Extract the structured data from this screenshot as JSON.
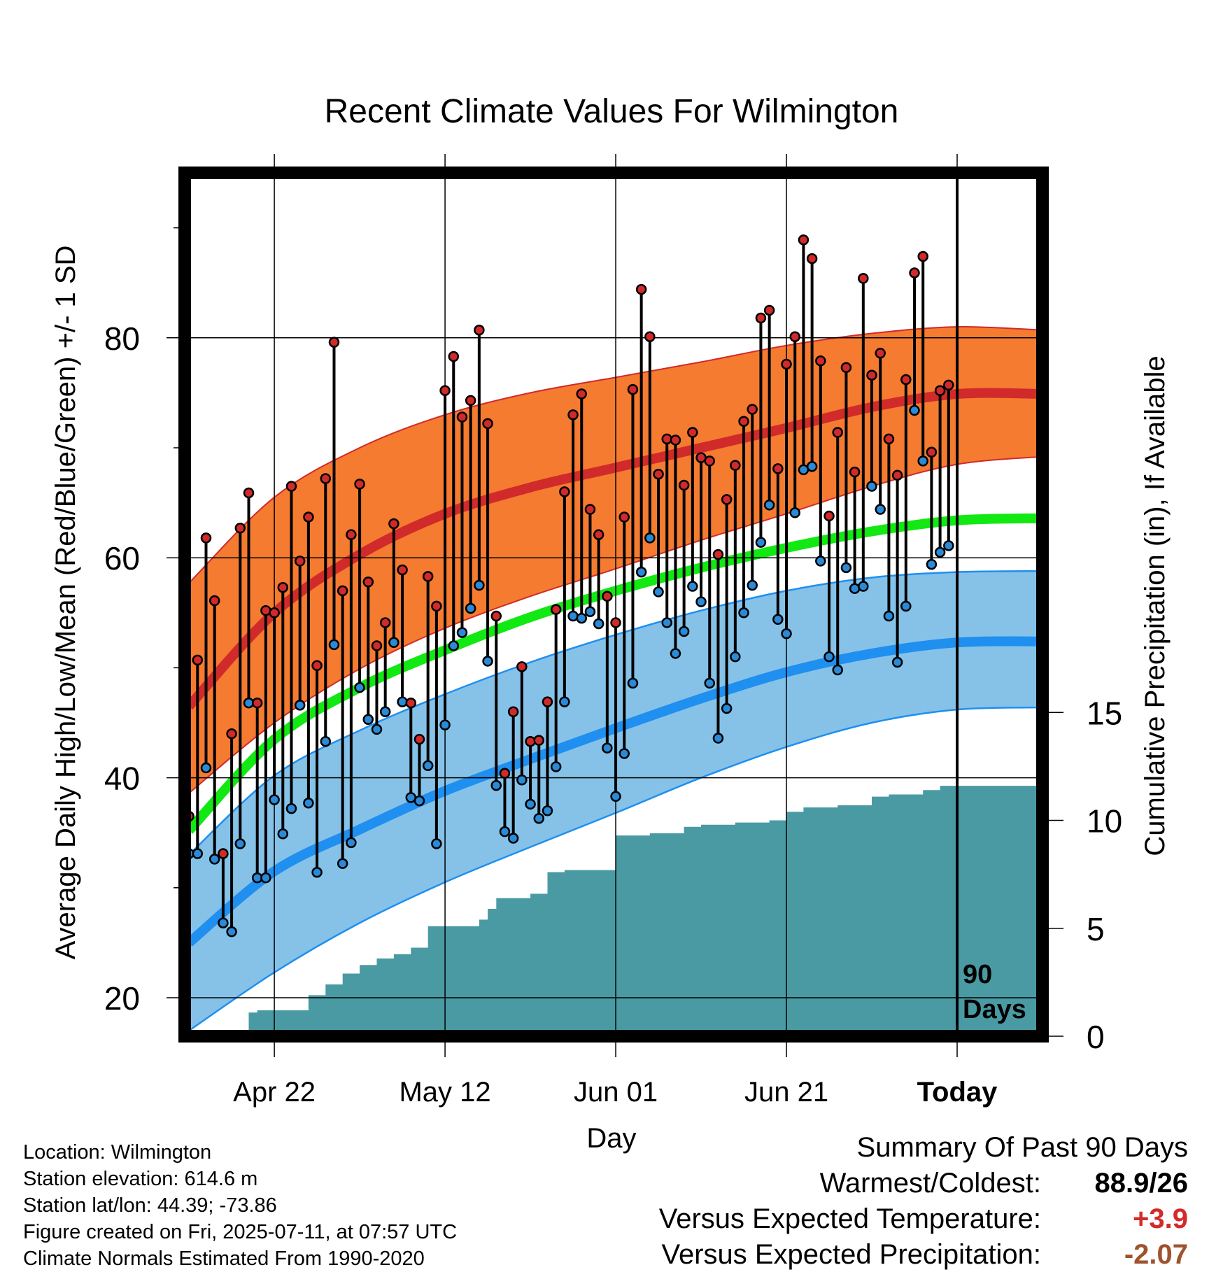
{
  "chart_data": {
    "type": "line",
    "title": "Recent Climate Values For Wilmington",
    "xlabel": "Day",
    "ylabel": "Average Daily High/Low/Mean (Red/Blue/Green) +/- 1 SD",
    "ylabel_right": "Cumulative Precipitation (in), If Available",
    "x_tick_labels": [
      "Apr 22",
      "May 12",
      "Jun 01",
      "Jun 21",
      "Today"
    ],
    "x_tick_days": [
      10,
      30,
      50,
      70,
      90
    ],
    "xlim": [
      -0.5,
      100
    ],
    "ylim": [
      16.5,
      95
    ],
    "y_ticks": [
      20,
      40,
      60,
      80
    ],
    "precip_lim": [
      0,
      40
    ],
    "precip_ticks": [
      0,
      5,
      10,
      15
    ],
    "today_label": "90\nDays",
    "grid": true,
    "colors": {
      "high_band": "#f47b30",
      "high_mean": "#d12a2a",
      "low_band": "#86c2e8",
      "low_mean": "#1f8ff0",
      "mean": "#12e812",
      "precip": "#4a9aa4",
      "high_point": "#d12a2a",
      "low_point": "#2a8ad8"
    },
    "normals": {
      "days": [
        0,
        10,
        20,
        30,
        40,
        50,
        60,
        70,
        80,
        90,
        100
      ],
      "high_plus_sd": [
        57.7,
        65.5,
        70.0,
        73.0,
        75.0,
        76.4,
        77.8,
        79.3,
        80.4,
        81.0,
        80.7
      ],
      "high_mean": [
        46.5,
        55.0,
        60.3,
        64.0,
        66.4,
        68.2,
        70.0,
        71.8,
        73.7,
        74.9,
        74.9
      ],
      "high_minus_sd": [
        38.6,
        45.0,
        49.9,
        53.6,
        56.5,
        59.0,
        61.6,
        64.0,
        66.5,
        68.5,
        69.2
      ],
      "mean": [
        35.2,
        43.5,
        48.2,
        51.6,
        54.6,
        57.0,
        59.1,
        60.9,
        62.4,
        63.4,
        63.6
      ],
      "low_plus_sd": [
        33.0,
        40.2,
        44.3,
        47.6,
        50.5,
        53.0,
        55.2,
        57.0,
        58.2,
        58.7,
        58.8
      ],
      "low_mean": [
        25.0,
        31.5,
        35.3,
        38.8,
        41.7,
        44.5,
        47.2,
        49.6,
        51.3,
        52.3,
        52.4
      ],
      "low_minus_sd": [
        17.0,
        22.3,
        26.8,
        30.5,
        33.7,
        36.8,
        40.0,
        42.8,
        45.0,
        46.2,
        46.4
      ]
    },
    "daily_highs": [
      36.5,
      50.7,
      61.8,
      56.1,
      33.1,
      44.0,
      62.7,
      65.9,
      46.8,
      55.2,
      55.0,
      57.3,
      66.5,
      59.7,
      63.7,
      50.2,
      67.2,
      79.6,
      57.0,
      62.1,
      66.7,
      57.8,
      52.0,
      54.1,
      63.1,
      58.9,
      46.8,
      43.5,
      58.3,
      55.6,
      75.2,
      78.3,
      72.8,
      74.3,
      80.7,
      72.2,
      54.7,
      40.4,
      46.0,
      50.1,
      43.3,
      43.4,
      46.9,
      55.3,
      66.0,
      73.0,
      74.9,
      64.4,
      62.1,
      56.5,
      54.1,
      63.7,
      75.3,
      84.4,
      80.1,
      67.6,
      70.8,
      70.7,
      66.6,
      71.4,
      69.1,
      68.8,
      60.3,
      65.3,
      68.4,
      72.4,
      73.5,
      81.8,
      82.5,
      68.1,
      77.6,
      80.1,
      88.9,
      87.2,
      77.9,
      63.8,
      71.4,
      77.3,
      67.8,
      85.4,
      76.6,
      78.6,
      70.8,
      67.5,
      76.2,
      85.9,
      87.4,
      69.6,
      75.2,
      75.7
    ],
    "daily_lows": [
      33.1,
      33.1,
      40.9,
      32.6,
      26.8,
      26.0,
      34.0,
      46.8,
      30.9,
      30.9,
      38.0,
      34.9,
      37.2,
      46.6,
      37.7,
      31.4,
      43.3,
      52.1,
      32.2,
      34.1,
      48.2,
      45.3,
      44.4,
      46.0,
      52.3,
      46.9,
      38.2,
      37.9,
      41.1,
      34.0,
      44.8,
      52.0,
      53.2,
      55.4,
      57.5,
      50.6,
      39.3,
      35.1,
      34.5,
      39.8,
      37.6,
      36.3,
      37.0,
      41.0,
      46.9,
      54.7,
      54.5,
      55.1,
      54.0,
      42.7,
      38.3,
      42.2,
      48.6,
      58.7,
      61.8,
      56.9,
      54.1,
      51.3,
      53.3,
      57.4,
      56.0,
      48.6,
      43.6,
      46.3,
      51.0,
      55.0,
      57.5,
      61.4,
      64.8,
      54.4,
      53.1,
      64.1,
      68.0,
      68.3,
      59.7,
      51.0,
      49.8,
      59.1,
      57.2,
      57.4,
      66.5,
      64.4,
      54.7,
      50.5,
      55.6,
      73.4,
      68.8,
      59.4,
      60.5,
      61.1
    ],
    "precip_cumulative": {
      "days": [
        0,
        4,
        6,
        7,
        8,
        9,
        12,
        14,
        16,
        18,
        20,
        22,
        24,
        26,
        28,
        30,
        32,
        34,
        35,
        36,
        38,
        40,
        42,
        44,
        46,
        48,
        50,
        54,
        58,
        60,
        64,
        68,
        70,
        72,
        76,
        80,
        82,
        86,
        88,
        90,
        100
      ],
      "values": [
        0,
        0.1,
        0.25,
        1.1,
        1.2,
        1.2,
        1.2,
        1.9,
        2.4,
        2.9,
        3.3,
        3.6,
        3.8,
        4.1,
        5.1,
        5.1,
        5.1,
        5.4,
        5.9,
        6.4,
        6.4,
        6.6,
        7.6,
        7.7,
        7.7,
        7.7,
        9.3,
        9.4,
        9.7,
        9.8,
        9.9,
        10.0,
        10.4,
        10.6,
        10.7,
        11.1,
        11.2,
        11.4,
        11.6,
        11.6,
        11.6
      ]
    }
  },
  "footer": {
    "location": "Location: Wilmington",
    "elevation": "Station elevation: 614.6 m",
    "latlon": "Station lat/lon: 44.39; -73.86",
    "created": "Figure created on Fri, 2025-07-11, at 07:57 UTC",
    "normals": "Climate Normals Estimated From 1990-2020"
  },
  "summary": {
    "title": "Summary Of Past 90 Days",
    "warm_cold_label": "Warmest/Coldest:",
    "warm_cold_value": "88.9/26",
    "temp_label": "Versus Expected Temperature:",
    "temp_value": "+3.9",
    "temp_color": "#d42a2a",
    "precip_label": "Versus Expected Precipitation:",
    "precip_value": "-2.07",
    "precip_color": "#a0522d"
  }
}
